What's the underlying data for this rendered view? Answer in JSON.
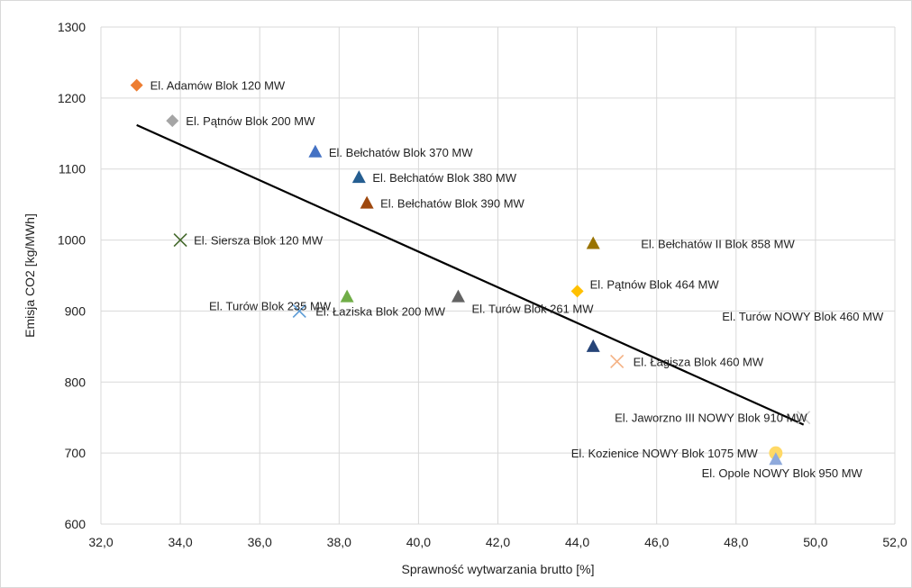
{
  "chart_data": {
    "type": "scatter",
    "title": "",
    "xlabel": "Sprawność wytwarzania brutto [%]",
    "ylabel": "Emisja CO2 [kg/MWh]",
    "xlim": [
      32,
      52
    ],
    "ylim": [
      600,
      1300
    ],
    "x_ticks": [
      "32,0",
      "34,0",
      "36,0",
      "38,0",
      "40,0",
      "42,0",
      "44,0",
      "46,0",
      "48,0",
      "50,0",
      "52,0"
    ],
    "y_ticks": [
      "600",
      "700",
      "800",
      "900",
      "1000",
      "1100",
      "1200",
      "1300"
    ],
    "grid": true,
    "legend": "none",
    "trendline": {
      "type": "linear",
      "from": [
        32.9,
        1162
      ],
      "to": [
        49.7,
        740
      ],
      "color": "#000000"
    },
    "points": [
      {
        "label": "El. Adamów Blok 120 MW",
        "x": 32.9,
        "y": 1218,
        "marker": "diamond",
        "color": "#ED7D31"
      },
      {
        "label": "El. Pątnów Blok 200 MW",
        "x": 33.8,
        "y": 1168,
        "marker": "diamond",
        "color": "#A5A5A5"
      },
      {
        "label": "El. Bełchatów Blok 370 MW",
        "x": 37.4,
        "y": 1124,
        "marker": "triangle",
        "color": "#4472C4"
      },
      {
        "label": "El. Bełchatów Blok 380 MW",
        "x": 38.5,
        "y": 1088,
        "marker": "triangle",
        "color": "#255E91"
      },
      {
        "label": "El. Bełchatów Blok 390 MW",
        "x": 38.7,
        "y": 1052,
        "marker": "triangle",
        "color": "#9E480E"
      },
      {
        "label": "El. Siersza Blok 120 MW",
        "x": 34.0,
        "y": 1000,
        "marker": "x",
        "color": "#43682B"
      },
      {
        "label": "El. Bełchatów II Blok 858 MW",
        "x": 44.4,
        "y": 995,
        "marker": "triangle",
        "color": "#997300"
      },
      {
        "label": "El. Pątnów Blok 464 MW",
        "x": 44.0,
        "y": 928,
        "marker": "diamond",
        "color": "#FFC000"
      },
      {
        "label": "El. Turów Blok 235 MW",
        "x": 38.2,
        "y": 920,
        "marker": "triangle",
        "color": "#70AD47"
      },
      {
        "label": "El. Łaziska Blok 200 MW",
        "x": 37.0,
        "y": 900,
        "marker": "x",
        "color": "#5B9BD5"
      },
      {
        "label": "El. Turów Blok 261 MW",
        "x": 41.0,
        "y": 920,
        "marker": "triangle",
        "color": "#636363"
      },
      {
        "label": "El. Turów NOWY Blok 460 MW",
        "x": 44.4,
        "y": 850,
        "marker": "triangle",
        "color": "#264478"
      },
      {
        "label": "El. Łagisza Blok 460 MW",
        "x": 45.0,
        "y": 829,
        "marker": "x",
        "color": "#F4B183"
      },
      {
        "label": "El. Jaworzno III NOWY Blok 910 MW",
        "x": 49.7,
        "y": 750,
        "marker": "x",
        "color": "#C9C9C9"
      },
      {
        "label": "El. Kozienice NOWY Blok 1075 MW",
        "x": 49.0,
        "y": 700,
        "marker": "circle",
        "color": "#FFD966"
      },
      {
        "label": "El. Opole NOWY Blok 950 MW",
        "x": 49.0,
        "y": 691,
        "marker": "triangle",
        "color": "#8FAADC"
      }
    ]
  }
}
